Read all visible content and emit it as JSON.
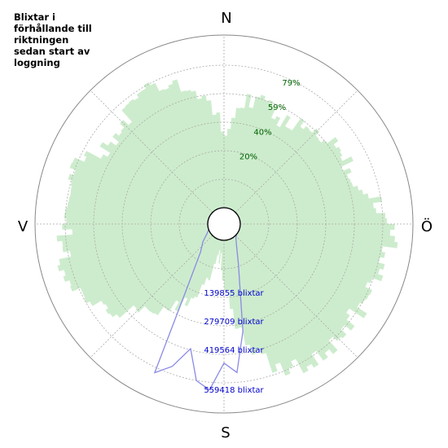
{
  "title": "Blixtar i förhållande till riktningen sedan start av loggning",
  "colors": {
    "fill": "#cdeccd",
    "line": "#8a8ae6",
    "pct_text": "#006400",
    "count_text": "#0000cc",
    "grid": "#aaaaaa"
  },
  "directions": {
    "n": "N",
    "e": "Ö",
    "s": "S",
    "w": "V"
  },
  "chart_data": {
    "type": "polar",
    "angle_unit": "degrees, clockwise from north",
    "grid": true,
    "series": [
      {
        "kind": "area",
        "unit": "percent",
        "rlim": [
          0,
          99
        ],
        "ring_labels": [
          "20%",
          "40%",
          "59%",
          "79%"
        ],
        "angles": [
          0,
          10,
          20,
          30,
          40,
          50,
          60,
          70,
          80,
          90,
          100,
          110,
          120,
          130,
          140,
          150,
          160,
          170,
          180,
          190,
          200,
          210,
          220,
          230,
          240,
          250,
          260,
          270,
          280,
          290,
          300,
          310,
          320,
          330,
          340,
          350
        ],
        "values": [
          45,
          62,
          65,
          58,
          63,
          68,
          72,
          68,
          80,
          86,
          88,
          85,
          84,
          82,
          86,
          85,
          79,
          60,
          20,
          5,
          34,
          44,
          54,
          70,
          80,
          86,
          84,
          83,
          82,
          85,
          72,
          70,
          76,
          80,
          76,
          66
        ]
      },
      {
        "kind": "line",
        "unit": "blixtar",
        "rlim": [
          0,
          683000
        ],
        "ring_labels": [
          "139855 blixtar",
          "279709 blixtar",
          "419564 blixtar",
          "559418 blixtar"
        ],
        "angles": [
          0,
          10,
          20,
          30,
          40,
          50,
          60,
          70,
          80,
          90,
          100,
          110,
          120,
          130,
          140,
          150,
          160,
          170,
          175,
          180,
          185,
          190,
          195,
          200,
          205,
          210,
          220,
          230,
          240,
          250,
          260,
          270,
          280,
          290,
          300,
          310,
          320,
          330,
          340,
          350
        ],
        "values": [
          0,
          0,
          0,
          0,
          0,
          0,
          0,
          0,
          0,
          0,
          0,
          0,
          0,
          0,
          9000,
          35000,
          102000,
          370000,
          530000,
          490000,
          600000,
          570000,
          450000,
          540000,
          590000,
          230000,
          80000,
          45000,
          14000,
          0,
          0,
          0,
          0,
          0,
          0,
          0,
          0,
          0,
          0,
          0
        ]
      }
    ]
  }
}
